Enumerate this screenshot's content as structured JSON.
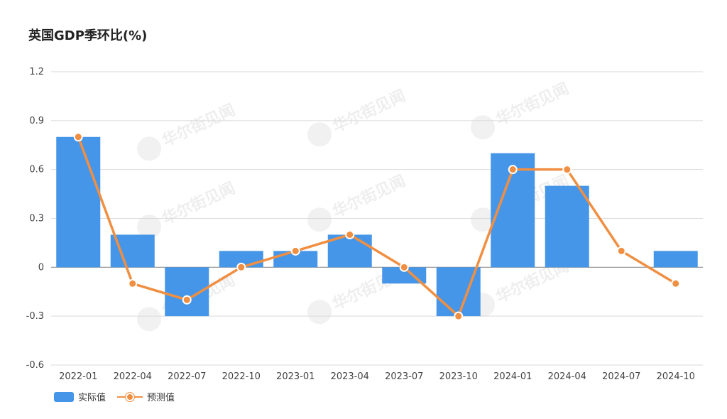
{
  "chart_data": {
    "type": "bar",
    "title": "英国GDP季环比(%)",
    "categories": [
      "2022-01",
      "2022-04",
      "2022-07",
      "2022-10",
      "2023-01",
      "2023-04",
      "2023-07",
      "2023-10",
      "2024-01",
      "2024-04",
      "2024-07",
      "2024-10"
    ],
    "series": [
      {
        "name": "实际值",
        "type": "bar",
        "color": "#4596e8",
        "values": [
          0.8,
          0.2,
          -0.3,
          0.1,
          0.1,
          0.2,
          -0.1,
          -0.3,
          0.7,
          0.5,
          null,
          0.1
        ]
      },
      {
        "name": "预测值",
        "type": "line",
        "color": "#f08f42",
        "values": [
          0.8,
          -0.1,
          -0.2,
          0.0,
          0.1,
          0.2,
          0.0,
          -0.3,
          0.6,
          0.6,
          0.1,
          -0.1
        ]
      }
    ],
    "ylim": [
      -0.6,
      1.2
    ],
    "yticks": [
      "1.2",
      "0.9",
      "0.6",
      "0.3",
      "0",
      "-0.3",
      "-0.6"
    ],
    "grid": true,
    "legend_position": "bottom-left",
    "watermark": "华尔街见闻"
  }
}
